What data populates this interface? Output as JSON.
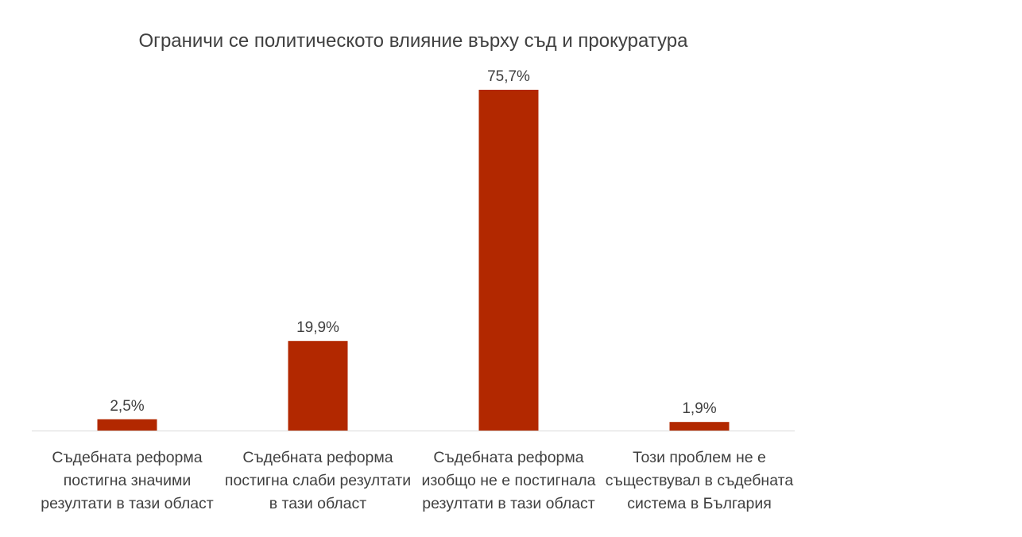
{
  "chart_data": {
    "type": "bar",
    "title": "Ограничи се политическото влияние върху съд и прокуратура",
    "categories": [
      "Съдебната реформа постигна значими резултати в тази област",
      "Съдебната реформа постигна слаби резултати в тази област",
      "Съдебната реформа изобщо не е постигнала резултати в тази област",
      "Този проблем не е съществувал в съдебната система в България"
    ],
    "values": [
      2.5,
      19.9,
      75.7,
      1.9
    ],
    "value_labels": [
      "2,5%",
      "19,9%",
      "75,7%",
      "1,9%"
    ],
    "ylim": [
      0,
      80
    ],
    "bar_color": "#b22800",
    "axis_color": "#d9d9d9",
    "grid": false,
    "legend": "none"
  }
}
